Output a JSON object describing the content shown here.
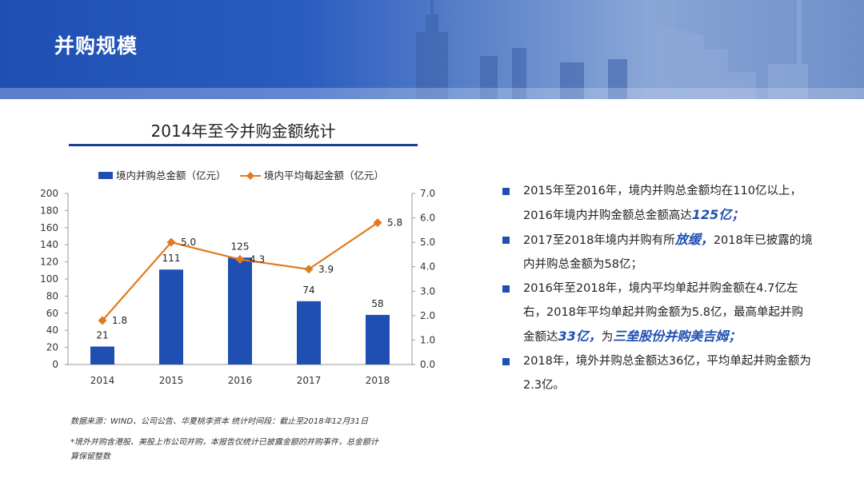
{
  "header": {
    "title": "并购规模"
  },
  "chart_data": {
    "type": "bar+line",
    "title": "2014年至今并购金额统计",
    "categories": [
      "2014",
      "2015",
      "2016",
      "2017",
      "2018"
    ],
    "series": [
      {
        "name": "境内并购总金额（亿元）",
        "type": "bar",
        "axis": "left",
        "values": [
          21,
          111,
          125,
          74,
          58
        ],
        "labels": [
          "21",
          "111",
          "125",
          "74",
          "58"
        ]
      },
      {
        "name": "境内平均每起金额（亿元）",
        "type": "line",
        "axis": "right",
        "values": [
          1.8,
          5.0,
          4.3,
          3.9,
          5.8
        ],
        "labels": [
          "1.8",
          "5.0",
          "4.3",
          "3.9",
          "5.8"
        ]
      }
    ],
    "y_left": {
      "min": 0,
      "max": 200,
      "step": 20,
      "ticks": [
        "0",
        "20",
        "40",
        "60",
        "80",
        "100",
        "120",
        "140",
        "160",
        "180",
        "200"
      ]
    },
    "y_right": {
      "min": 0,
      "max": 7,
      "step": 1,
      "ticks": [
        "0.0",
        "1.0",
        "2.0",
        "3.0",
        "4.0",
        "5.0",
        "6.0",
        "7.0"
      ]
    },
    "legend_position": "top",
    "colors": {
      "bar": "#1f4fb3",
      "line": "#e07b1f"
    }
  },
  "notes": {
    "source": "数据来源：WIND、公司公告、华夏桃李资本   统计时间段：截止至2018年12月31日",
    "footnote_1": "*境外并购含港股、美股上市公司并购，本报告仅统计已披露金额的并购事件，总金额计",
    "footnote_2": "算保留整数"
  },
  "bullets": [
    {
      "pre": "2015年至2016年，境内并购总金额均在110亿以上，2016年境内并购金额总金额高达",
      "hl": "125亿；",
      "post": ""
    },
    {
      "pre": "2017至2018年境内并购有所",
      "hl": "放缓，",
      "post": "2018年已披露的境内并购总金额为58亿；"
    },
    {
      "pre": "2016年至2018年，境内平均单起并购金额在4.7亿左右，2018年平均单起并购金额为5.8亿，最高单起并购金额达",
      "hl": "33亿，",
      "mid": "为",
      "hl2": "三垒股份并购美吉姆；"
    },
    {
      "pre": "2018年，境外并购总金额达36亿，平均单起并购金额为2.3亿。",
      "hl": "",
      "post": ""
    }
  ]
}
